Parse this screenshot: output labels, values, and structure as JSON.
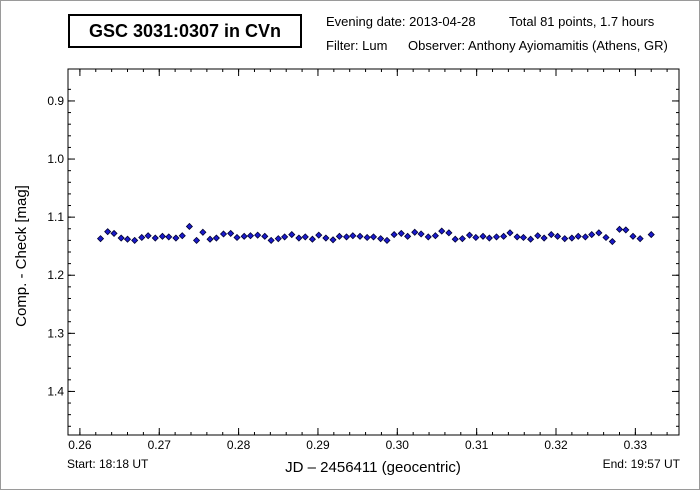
{
  "header": {
    "title": "GSC 3031:0307 in CVn",
    "evening_date": "Evening date: 2013-04-28",
    "total": "Total 81 points, 1.7 hours",
    "filter": "Filter: Lum",
    "observer": "Observer: Anthony Ayiomamitis (Athens, GR)"
  },
  "footer": {
    "start": "Start: 18:18 UT",
    "end": "End: 19:57 UT"
  },
  "chart_data": {
    "type": "scatter",
    "title": "GSC 3031:0307 in CVn",
    "xlabel": "JD – 2456411  (geocentric)",
    "ylabel": "Comp. - Check [mag]",
    "xlim": [
      0.2585,
      0.3355
    ],
    "ylim": [
      1.475,
      0.845
    ],
    "y_inverted": true,
    "grid": false,
    "x_ticks": [
      0.26,
      0.27,
      0.28,
      0.29,
      0.3,
      0.31,
      0.32,
      0.33
    ],
    "x_tick_labels": [
      "0.26",
      "0.27",
      "0.28",
      "0.29",
      "0.30",
      "0.31",
      "0.32",
      "0.33"
    ],
    "y_ticks": [
      0.9,
      1.0,
      1.1,
      1.2,
      1.3,
      1.4
    ],
    "y_tick_labels": [
      "0.9",
      "1.0",
      "1.1",
      "1.2",
      "1.3",
      "1.4"
    ],
    "point_color": "#1a1acc",
    "point_edge_color": "#000033",
    "x": [
      0.2626,
      0.2635,
      0.2643,
      0.2652,
      0.266,
      0.2669,
      0.2678,
      0.2686,
      0.2695,
      0.2704,
      0.2712,
      0.2721,
      0.2729,
      0.2738,
      0.2747,
      0.2755,
      0.2764,
      0.2772,
      0.2781,
      0.279,
      0.2798,
      0.2807,
      0.2815,
      0.2824,
      0.2833,
      0.2841,
      0.285,
      0.2858,
      0.2867,
      0.2876,
      0.2884,
      0.2893,
      0.2901,
      0.291,
      0.2919,
      0.2927,
      0.2936,
      0.2944,
      0.2953,
      0.2962,
      0.297,
      0.2979,
      0.2987,
      0.2996,
      0.3005,
      0.3013,
      0.3022,
      0.303,
      0.3039,
      0.3048,
      0.3056,
      0.3065,
      0.3073,
      0.3082,
      0.3091,
      0.3099,
      0.3108,
      0.3116,
      0.3125,
      0.3134,
      0.3142,
      0.3151,
      0.3159,
      0.3168,
      0.3177,
      0.3185,
      0.3194,
      0.3202,
      0.3211,
      0.322,
      0.3228,
      0.3237,
      0.3245,
      0.3254,
      0.3263,
      0.3271,
      0.328,
      0.3288,
      0.3297,
      0.3306,
      0.332
    ],
    "y": [
      1.137,
      1.125,
      1.128,
      1.136,
      1.138,
      1.14,
      1.135,
      1.132,
      1.136,
      1.133,
      1.134,
      1.136,
      1.132,
      1.116,
      1.14,
      1.126,
      1.138,
      1.136,
      1.129,
      1.128,
      1.135,
      1.133,
      1.132,
      1.131,
      1.133,
      1.14,
      1.137,
      1.134,
      1.13,
      1.136,
      1.134,
      1.138,
      1.131,
      1.136,
      1.139,
      1.133,
      1.134,
      1.132,
      1.133,
      1.135,
      1.134,
      1.137,
      1.14,
      1.13,
      1.128,
      1.133,
      1.126,
      1.129,
      1.134,
      1.132,
      1.124,
      1.127,
      1.138,
      1.137,
      1.131,
      1.135,
      1.133,
      1.136,
      1.134,
      1.133,
      1.127,
      1.134,
      1.135,
      1.138,
      1.132,
      1.136,
      1.13,
      1.133,
      1.137,
      1.136,
      1.133,
      1.134,
      1.13,
      1.127,
      1.135,
      1.142,
      1.121,
      1.122,
      1.133,
      1.137,
      1.13
    ]
  }
}
